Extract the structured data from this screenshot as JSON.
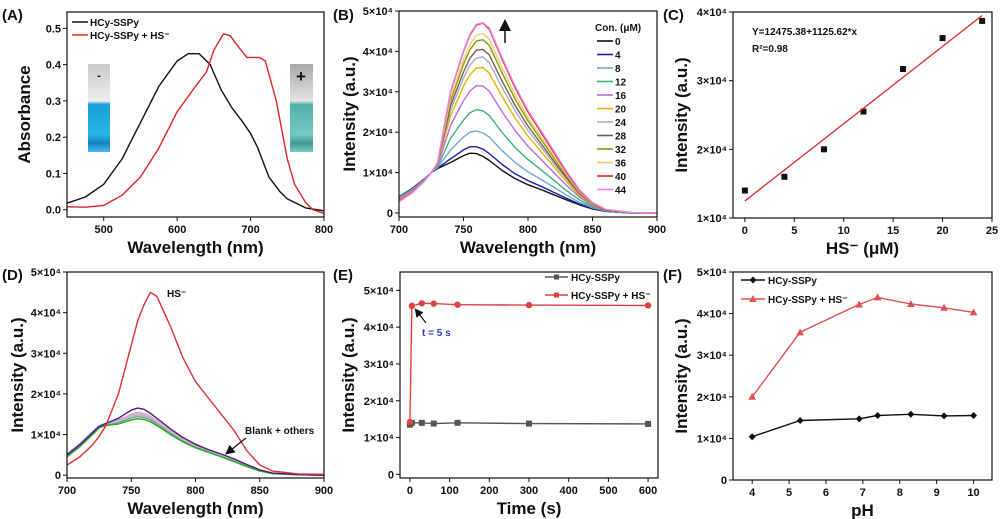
{
  "figure": {
    "inset_labels": {
      "minus": "-",
      "plus": "+"
    }
  },
  "chart_data": [
    {
      "panel": "(A)",
      "type": "line",
      "xlabel": "Wavelength (nm)",
      "ylabel": "Absorbance",
      "xlim": [
        450,
        800
      ],
      "ylim": [
        -0.02,
        0.545
      ],
      "xticks": [
        500,
        600,
        700,
        800
      ],
      "xtick_labels": [
        "500",
        "600",
        "700",
        "800"
      ],
      "yticks": [
        0,
        0.1,
        0.2,
        0.3,
        0.4,
        0.5
      ],
      "ytick_labels": [
        "0.0",
        "0.1",
        "0.2",
        "0.3",
        "0.4",
        "0.5"
      ],
      "legend": "top-left",
      "series": [
        {
          "name": "HCy-SSPy",
          "color": "#111111",
          "x": [
            450,
            475,
            500,
            525,
            550,
            575,
            600,
            615,
            630,
            645,
            660,
            675,
            690,
            700,
            710,
            725,
            740,
            750,
            775,
            800
          ],
          "y": [
            0.018,
            0.035,
            0.07,
            0.14,
            0.24,
            0.34,
            0.41,
            0.43,
            0.43,
            0.4,
            0.33,
            0.28,
            0.24,
            0.21,
            0.17,
            0.09,
            0.05,
            0.03,
            0.005,
            -0.003
          ]
        },
        {
          "name": "HCy-SSPy + HS⁻",
          "color": "#e02424",
          "x": [
            450,
            475,
            500,
            525,
            550,
            575,
            600,
            625,
            640,
            650,
            663,
            672,
            685,
            695,
            705,
            712,
            720,
            735,
            750,
            760,
            775,
            785,
            800
          ],
          "y": [
            0.008,
            0.007,
            0.012,
            0.04,
            0.09,
            0.17,
            0.27,
            0.34,
            0.38,
            0.44,
            0.485,
            0.48,
            0.445,
            0.42,
            0.42,
            0.42,
            0.41,
            0.3,
            0.14,
            0.07,
            0.02,
            0.0,
            -0.01
          ]
        }
      ]
    },
    {
      "panel": "(B)",
      "type": "line",
      "xlabel": "Wavelength (nm)",
      "ylabel": "Intensity (a.u.)",
      "xlim": [
        700,
        900
      ],
      "ylim": [
        -1000,
        50000
      ],
      "xticks": [
        700,
        750,
        800,
        850,
        900
      ],
      "xtick_labels": [
        "700",
        "750",
        "800",
        "850",
        "900"
      ],
      "yticks": [
        0,
        10000,
        20000,
        30000,
        40000,
        50000
      ],
      "ytick_labels": [
        "0",
        "1×10⁴",
        "2×10⁴",
        "3×10⁴",
        "4×10⁴",
        "5×10⁴"
      ],
      "legend": "right",
      "legend_title": "Con. (μM)",
      "x": [
        700,
        710,
        720,
        725,
        730,
        740,
        750,
        755,
        760,
        765,
        770,
        780,
        790,
        800,
        810,
        820,
        830,
        840,
        850,
        860,
        880,
        900
      ],
      "series": [
        {
          "name": "0",
          "color": "#111111",
          "y": [
            4000,
            6000,
            8500,
            10000,
            11000,
            12500,
            14200,
            14800,
            14700,
            14000,
            13000,
            10500,
            8500,
            7000,
            5800,
            4500,
            3200,
            2000,
            1000,
            400,
            0,
            0
          ]
        },
        {
          "name": "4",
          "color": "#1c1cb0",
          "y": [
            4000,
            6000,
            8500,
            10000,
            11100,
            13400,
            15600,
            16400,
            16400,
            15800,
            14700,
            12000,
            9700,
            8000,
            6600,
            5100,
            3600,
            2200,
            1100,
            400,
            0,
            0
          ]
        },
        {
          "name": "8",
          "color": "#6fa8dc",
          "y": [
            3800,
            5800,
            8400,
            10000,
            11300,
            15600,
            18800,
            20000,
            20300,
            19800,
            18800,
            15400,
            12500,
            10200,
            8300,
            6400,
            4400,
            2600,
            1300,
            500,
            0,
            0
          ]
        },
        {
          "name": "12",
          "color": "#3cb37a",
          "y": [
            3700,
            5700,
            8300,
            10000,
            11500,
            18500,
            23000,
            24800,
            25600,
            25300,
            24100,
            19900,
            16200,
            13200,
            10700,
            8100,
            5500,
            3200,
            1500,
            500,
            0,
            0
          ]
        },
        {
          "name": "16",
          "color": "#b86fd8",
          "y": [
            3500,
            5500,
            8200,
            10000,
            11800,
            21700,
            27800,
            30200,
            31500,
            31400,
            30200,
            25000,
            20400,
            16500,
            13300,
            10000,
            6800,
            3900,
            1800,
            600,
            100,
            0
          ]
        },
        {
          "name": "20",
          "color": "#e8b400",
          "y": [
            3300,
            5300,
            8200,
            10000,
            12000,
            24100,
            31400,
            34200,
            35900,
            36000,
            34600,
            28800,
            23500,
            19000,
            15200,
            11500,
            7700,
            4300,
            2000,
            700,
            100,
            0
          ]
        },
        {
          "name": "24",
          "color": "#9fb0c8",
          "y": [
            3300,
            5300,
            8100,
            10000,
            12100,
            25500,
            33400,
            36600,
            38400,
            38600,
            37200,
            31000,
            25300,
            20400,
            16400,
            12300,
            8300,
            4600,
            2100,
            700,
            100,
            0
          ]
        },
        {
          "name": "28",
          "color": "#7a5a50",
          "y": [
            3200,
            5200,
            8100,
            10000,
            12200,
            26600,
            34900,
            38300,
            40300,
            40500,
            39100,
            32600,
            26600,
            21500,
            17200,
            12900,
            8700,
            4800,
            2200,
            700,
            100,
            0
          ]
        },
        {
          "name": "32",
          "color": "#8a9a00",
          "y": [
            3100,
            5100,
            8100,
            10000,
            12300,
            27800,
            36800,
            40400,
            42600,
            42900,
            41500,
            34600,
            28200,
            22800,
            18200,
            13700,
            9200,
            5100,
            2300,
            800,
            100,
            0
          ]
        },
        {
          "name": "36",
          "color": "#f0d070",
          "y": [
            3100,
            5100,
            8000,
            10000,
            12400,
            28600,
            38000,
            41700,
            44000,
            44400,
            43000,
            35900,
            29300,
            23600,
            18900,
            14200,
            9500,
            5200,
            2400,
            800,
            100,
            0
          ]
        },
        {
          "name": "40",
          "color": "#e02020",
          "y": [
            3000,
            5000,
            8000,
            10000,
            12500,
            30000,
            40000,
            44000,
            46500,
            47000,
            45500,
            38000,
            31000,
            25000,
            20000,
            15000,
            10000,
            5500,
            2500,
            800,
            100,
            0
          ]
        },
        {
          "name": "44",
          "color": "#f080f0",
          "y": [
            2800,
            4900,
            8000,
            10000,
            12600,
            30200,
            40200,
            44200,
            46700,
            47100,
            45800,
            38400,
            31400,
            25400,
            20400,
            15400,
            10300,
            5700,
            2600,
            900,
            100,
            0
          ]
        }
      ]
    },
    {
      "panel": "(C)",
      "type": "scatter",
      "xlabel": "HS⁻ (μM)",
      "ylabel": "Intensity (a.u.)",
      "xlim": [
        -1.2,
        25
      ],
      "ylim": [
        10000,
        40000
      ],
      "xticks": [
        0,
        5,
        10,
        15,
        20,
        25
      ],
      "xtick_labels": [
        "0",
        "5",
        "10",
        "15",
        "20",
        "25"
      ],
      "yticks": [
        10000,
        20000,
        30000,
        40000
      ],
      "ytick_labels": [
        "1×10⁴",
        "2×10⁴",
        "3×10⁴",
        "4×10⁴"
      ],
      "series": [
        {
          "name": "data",
          "color": "#111111",
          "marker": "square",
          "x": [
            0,
            4,
            8,
            12,
            16,
            20,
            24
          ],
          "y": [
            14000,
            16000,
            20000,
            25500,
            31700,
            36200,
            38700
          ]
        }
      ],
      "fit": {
        "intercept": 12475.38,
        "slope": 1125.62,
        "x_range": [
          0,
          24
        ],
        "color": "#d42a2a",
        "equation": "Y=12475.38+1125.62*x",
        "r2": "R²=0.98"
      }
    },
    {
      "panel": "(D)",
      "type": "line",
      "xlabel": "Wavelength (nm)",
      "ylabel": "Intensity (a.u.)",
      "xlim": [
        700,
        900
      ],
      "ylim": [
        -700,
        50000
      ],
      "xticks": [
        700,
        750,
        800,
        850,
        900
      ],
      "xtick_labels": [
        "700",
        "750",
        "800",
        "850",
        "900"
      ],
      "yticks": [
        0,
        10000,
        20000,
        30000,
        40000,
        50000
      ],
      "ytick_labels": [
        "0",
        "1×10⁴",
        "2×10⁴",
        "3×10⁴",
        "4×10⁴",
        "5×10⁴"
      ],
      "annotations": {
        "hs": "HS⁻",
        "others": "Blank + others"
      },
      "x": [
        700,
        710,
        720,
        725,
        730,
        740,
        750,
        755,
        760,
        765,
        770,
        780,
        790,
        800,
        810,
        820,
        830,
        840,
        850,
        860,
        880,
        900
      ],
      "series": [
        {
          "name": "pink",
          "color": "#e8a0e0",
          "y": [
            5200,
            7800,
            10800,
            12200,
            12800,
            13600,
            15000,
            15500,
            15200,
            14500,
            13400,
            11000,
            8900,
            7300,
            6000,
            4900,
            3700,
            2400,
            1200,
            500,
            100,
            0
          ]
        },
        {
          "name": "tan",
          "color": "#d8b890",
          "y": [
            4800,
            7400,
            10400,
            12000,
            12600,
            13400,
            14700,
            15100,
            14900,
            14200,
            13200,
            10800,
            8700,
            7100,
            5900,
            4800,
            3600,
            2300,
            1200,
            500,
            100,
            0
          ]
        },
        {
          "name": "light-blue",
          "color": "#9cc4e8",
          "y": [
            5000,
            7600,
            10600,
            12100,
            12700,
            13300,
            14500,
            14800,
            14600,
            13900,
            12900,
            10600,
            8600,
            7000,
            5800,
            4700,
            3500,
            2200,
            1100,
            400,
            100,
            0
          ]
        },
        {
          "name": "grey",
          "color": "#909090",
          "y": [
            4600,
            7200,
            10200,
            11800,
            12300,
            12900,
            14100,
            14400,
            14200,
            13600,
            12600,
            10400,
            8400,
            6900,
            5700,
            4600,
            3400,
            2200,
            1100,
            400,
            100,
            0
          ]
        },
        {
          "name": "green",
          "color": "#20b020",
          "y": [
            4500,
            7000,
            10000,
            11600,
            12200,
            12600,
            13600,
            13900,
            13700,
            13100,
            12200,
            10100,
            8200,
            6700,
            5600,
            4500,
            3300,
            2100,
            1000,
            400,
            100,
            0
          ]
        },
        {
          "name": "purple",
          "color": "#4a1a80",
          "y": [
            5000,
            7500,
            10500,
            12000,
            12700,
            14000,
            16000,
            16500,
            16200,
            15200,
            14000,
            11500,
            9300,
            7600,
            6300,
            5200,
            4000,
            2600,
            1300,
            500,
            100,
            0
          ]
        },
        {
          "name": "HS⁻",
          "color": "#e03030",
          "y": [
            2500,
            4500,
            7500,
            9500,
            12000,
            20000,
            32000,
            38000,
            42000,
            45000,
            44000,
            37000,
            29000,
            23000,
            19000,
            15000,
            11000,
            6000,
            2500,
            1000,
            300,
            200
          ]
        }
      ]
    },
    {
      "panel": "(E)",
      "type": "line",
      "xlabel": "Time (s)",
      "ylabel": "Intensity (a.u.)",
      "xlim": [
        -25,
        625
      ],
      "ylim": [
        -1000,
        55000
      ],
      "xticks": [
        0,
        100,
        200,
        300,
        400,
        500,
        600
      ],
      "xtick_labels": [
        "0",
        "100",
        "200",
        "300",
        "400",
        "500",
        "600"
      ],
      "yticks": [
        0,
        10000,
        20000,
        30000,
        40000,
        50000
      ],
      "ytick_labels": [
        "0",
        "1×10⁴",
        "2×10⁴",
        "3×10⁴",
        "4×10⁴",
        "5×10⁴"
      ],
      "legend": "top-right",
      "annotations": {
        "t5": "t = 5 s",
        "t5_color": "#2a3ad0"
      },
      "series": [
        {
          "name": "HCy-SSPy",
          "color": "#555555",
          "marker": "square",
          "x": [
            0,
            5,
            30,
            60,
            120,
            300,
            600
          ],
          "y": [
            13500,
            14000,
            14000,
            13800,
            14000,
            13800,
            13700
          ]
        },
        {
          "name": "HCy-SSPy + HS⁻",
          "color": "#e04040",
          "marker": "circle",
          "x": [
            0,
            5,
            30,
            60,
            120,
            300,
            600
          ],
          "y": [
            14200,
            45800,
            46500,
            46400,
            46100,
            46000,
            45900
          ]
        }
      ]
    },
    {
      "panel": "(F)",
      "type": "line",
      "xlabel": "pH",
      "ylabel": "Intensity (a.u.)",
      "xlim": [
        3.48,
        10.5
      ],
      "ylim": [
        0,
        50000
      ],
      "xticks": [
        4,
        5,
        6,
        7,
        8,
        9,
        10
      ],
      "xtick_labels": [
        "4",
        "5",
        "6",
        "7",
        "8",
        "9",
        "10"
      ],
      "yticks": [
        0,
        10000,
        20000,
        30000,
        40000,
        50000
      ],
      "ytick_labels": [
        "0",
        "1×10⁴",
        "2×10⁴",
        "3×10⁴",
        "4×10⁴",
        "5×10⁴"
      ],
      "legend": "top-left",
      "series": [
        {
          "name": "HCy-SSPy",
          "color": "#111111",
          "marker": "diamond",
          "x": [
            4,
            5.3,
            6.9,
            7.4,
            8.3,
            9.2,
            10
          ],
          "y": [
            10400,
            14300,
            14700,
            15500,
            15800,
            15400,
            15500
          ]
        },
        {
          "name": "HCy-SSPy + HS⁻",
          "color": "#e05050",
          "marker": "triangle",
          "x": [
            4,
            5.3,
            6.9,
            7.4,
            8.3,
            9.2,
            10
          ],
          "y": [
            20000,
            35500,
            42200,
            43900,
            42300,
            41400,
            40300
          ]
        }
      ]
    }
  ]
}
